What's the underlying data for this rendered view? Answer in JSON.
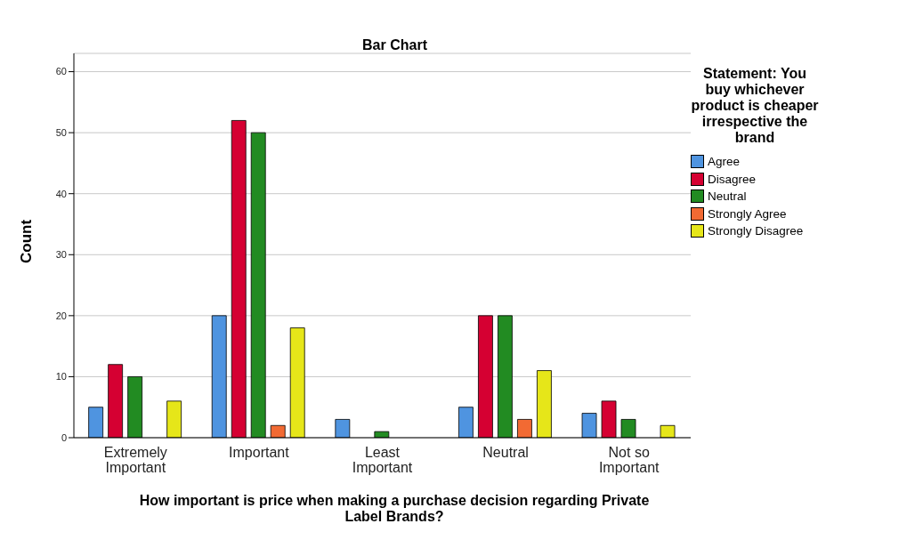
{
  "chart_data": {
    "type": "bar",
    "title": "Bar Chart",
    "xlabel": "How important is price when making a purchase decision regarding Private Label Brands?",
    "ylabel": "Count",
    "legend_title": "Statement: You buy whichever product is cheaper irrespective the brand",
    "categories": [
      "Extremely Important",
      "Important",
      "Least Important",
      "Neutral",
      "Not so Important"
    ],
    "series": [
      {
        "name": "Agree",
        "color": "#4f94e0",
        "values": [
          5,
          20,
          3,
          5,
          4
        ]
      },
      {
        "name": "Disagree",
        "color": "#d50032",
        "values": [
          12,
          52,
          null,
          20,
          6
        ]
      },
      {
        "name": "Neutral",
        "color": "#228b22",
        "values": [
          10,
          50,
          1,
          20,
          3
        ]
      },
      {
        "name": "Strongly Agree",
        "color": "#f26a33",
        "values": [
          null,
          2,
          null,
          3,
          null
        ]
      },
      {
        "name": "Strongly Disagree",
        "color": "#e6e619",
        "values": [
          6,
          18,
          null,
          11,
          2
        ]
      }
    ],
    "ylim": [
      0,
      63
    ],
    "yticks": [
      0,
      10,
      20,
      30,
      40,
      50,
      60
    ],
    "grid": "y",
    "legend": "right"
  }
}
